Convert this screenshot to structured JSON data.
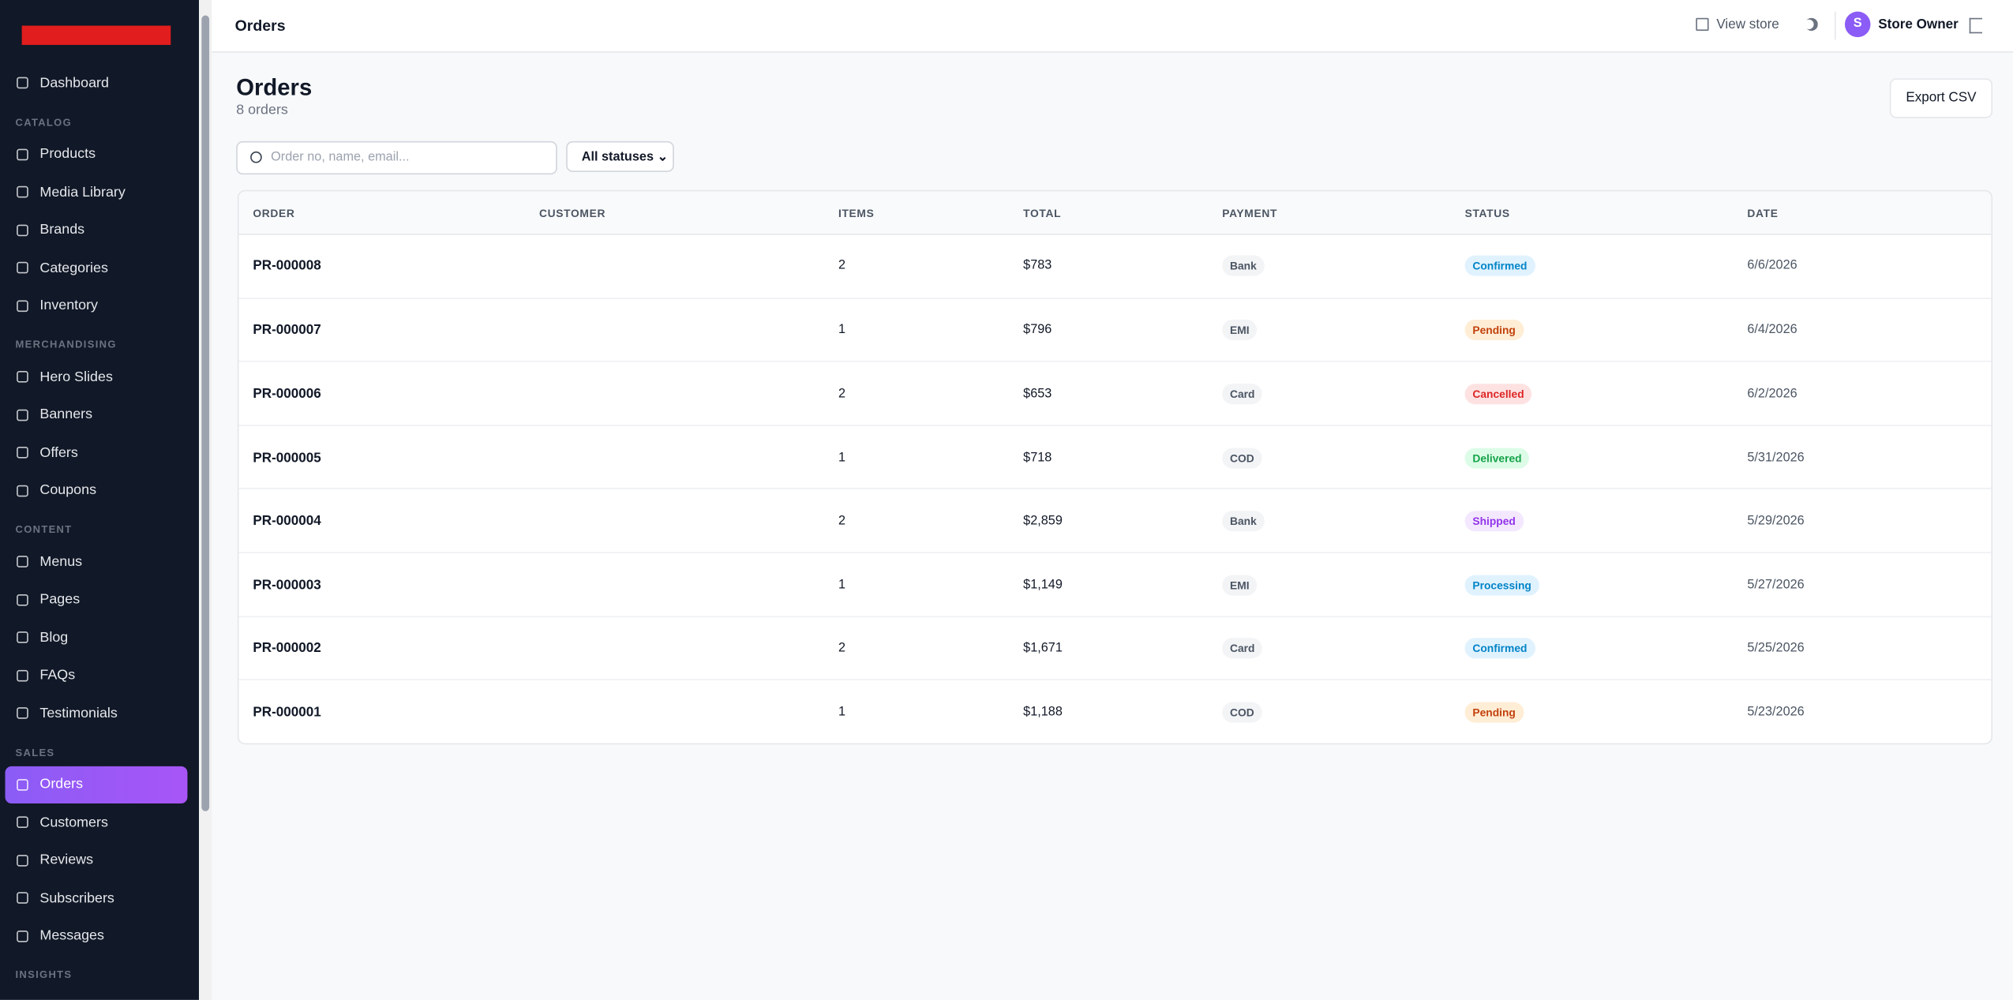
{
  "topbar": {
    "title": "Orders",
    "view_store": "View store",
    "avatar_initial": "S",
    "user": "Store Owner"
  },
  "sidebar": {
    "groups": [
      {
        "items": [
          {
            "label": "Dashboard"
          }
        ]
      },
      {
        "label": "CATALOG",
        "items": [
          {
            "label": "Products"
          },
          {
            "label": "Media Library"
          },
          {
            "label": "Brands"
          },
          {
            "label": "Categories"
          },
          {
            "label": "Inventory"
          }
        ]
      },
      {
        "label": "MERCHANDISING",
        "items": [
          {
            "label": "Hero Slides"
          },
          {
            "label": "Banners"
          },
          {
            "label": "Offers"
          },
          {
            "label": "Coupons"
          }
        ]
      },
      {
        "label": "CONTENT",
        "items": [
          {
            "label": "Menus"
          },
          {
            "label": "Pages"
          },
          {
            "label": "Blog"
          },
          {
            "label": "FAQs"
          },
          {
            "label": "Testimonials"
          }
        ]
      },
      {
        "label": "SALES",
        "items": [
          {
            "label": "Orders",
            "active": true
          },
          {
            "label": "Customers"
          },
          {
            "label": "Reviews"
          },
          {
            "label": "Subscribers"
          },
          {
            "label": "Messages"
          }
        ]
      },
      {
        "label": "INSIGHTS",
        "items": []
      }
    ]
  },
  "page": {
    "title": "Orders",
    "subtitle": "8 orders",
    "search_placeholder": "Order no, name, email...",
    "status_filter": "All statuses",
    "export": "Export CSV"
  },
  "table": {
    "headers": [
      "ORDER",
      "CUSTOMER",
      "ITEMS",
      "TOTAL",
      "PAYMENT",
      "STATUS",
      "DATE"
    ],
    "rows": [
      {
        "order": "PR-000008",
        "items": "2",
        "total": "$783",
        "payment": "Bank",
        "status": "Confirmed",
        "status_color": "#0284c7",
        "status_bg": "#e0f2fe",
        "date": "6/6/2026"
      },
      {
        "order": "PR-000007",
        "items": "1",
        "total": "$796",
        "payment": "EMI",
        "status": "Pending",
        "status_color": "#c2410c",
        "status_bg": "#ffedd5",
        "date": "6/4/2026"
      },
      {
        "order": "PR-000006",
        "items": "2",
        "total": "$653",
        "payment": "Card",
        "status": "Cancelled",
        "status_color": "#dc2626",
        "status_bg": "#fee2e2",
        "date": "6/2/2026"
      },
      {
        "order": "PR-000005",
        "items": "1",
        "total": "$718",
        "payment": "COD",
        "status": "Delivered",
        "status_color": "#16a34a",
        "status_bg": "#dcfce7",
        "date": "5/31/2026"
      },
      {
        "order": "PR-000004",
        "items": "2",
        "total": "$2,859",
        "payment": "Bank",
        "status": "Shipped",
        "status_color": "#9333ea",
        "status_bg": "#f3e8ff",
        "date": "5/29/2026"
      },
      {
        "order": "PR-000003",
        "items": "1",
        "total": "$1,149",
        "payment": "EMI",
        "status": "Processing",
        "status_color": "#0284c7",
        "status_bg": "#e0f2fe",
        "date": "5/27/2026"
      },
      {
        "order": "PR-000002",
        "items": "2",
        "total": "$1,671",
        "payment": "Card",
        "status": "Confirmed",
        "status_color": "#0284c7",
        "status_bg": "#e0f2fe",
        "date": "5/25/2026"
      },
      {
        "order": "PR-000001",
        "items": "1",
        "total": "$1,188",
        "payment": "COD",
        "status": "Pending",
        "status_color": "#c2410c",
        "status_bg": "#ffedd5",
        "date": "5/23/2026"
      }
    ]
  }
}
